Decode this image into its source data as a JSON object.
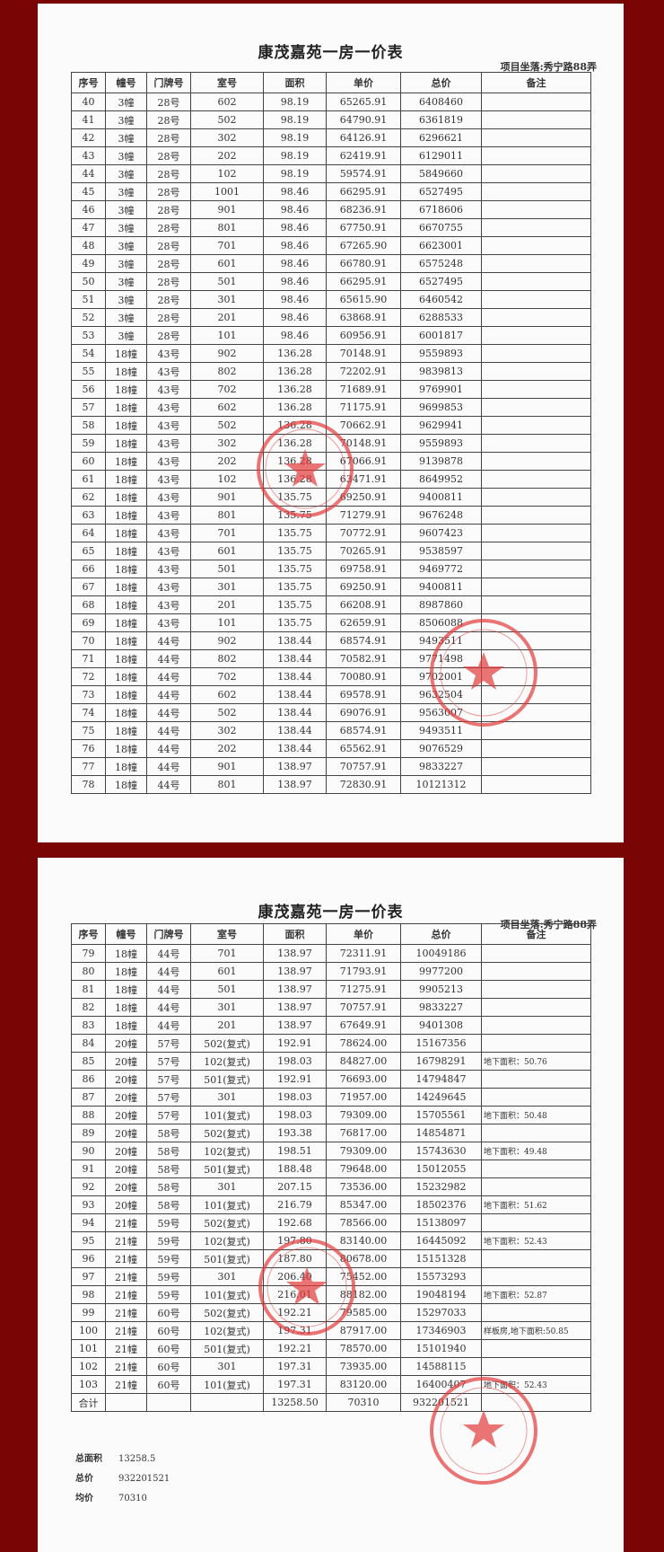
{
  "document_title": "康茂嘉苑一房一价表",
  "location": "项目坐落:秀宁路88弄",
  "columns": [
    "序号",
    "幢号",
    "门牌号",
    "室号",
    "面积",
    "单价",
    "总价",
    "备注"
  ],
  "stamp_color": "#e23a3a",
  "pages": [
    {
      "rows": [
        [
          "40",
          "3幢",
          "28号",
          "602",
          "98.19",
          "65265.91",
          "6408460",
          ""
        ],
        [
          "41",
          "3幢",
          "28号",
          "502",
          "98.19",
          "64790.91",
          "6361819",
          ""
        ],
        [
          "42",
          "3幢",
          "28号",
          "302",
          "98.19",
          "64126.91",
          "6296621",
          ""
        ],
        [
          "43",
          "3幢",
          "28号",
          "202",
          "98.19",
          "62419.91",
          "6129011",
          ""
        ],
        [
          "44",
          "3幢",
          "28号",
          "102",
          "98.19",
          "59574.91",
          "5849660",
          ""
        ],
        [
          "45",
          "3幢",
          "28号",
          "1001",
          "98.46",
          "66295.91",
          "6527495",
          ""
        ],
        [
          "46",
          "3幢",
          "28号",
          "901",
          "98.46",
          "68236.91",
          "6718606",
          ""
        ],
        [
          "47",
          "3幢",
          "28号",
          "801",
          "98.46",
          "67750.91",
          "6670755",
          ""
        ],
        [
          "48",
          "3幢",
          "28号",
          "701",
          "98.46",
          "67265.90",
          "6623001",
          ""
        ],
        [
          "49",
          "3幢",
          "28号",
          "601",
          "98.46",
          "66780.91",
          "6575248",
          ""
        ],
        [
          "50",
          "3幢",
          "28号",
          "501",
          "98.46",
          "66295.91",
          "6527495",
          ""
        ],
        [
          "51",
          "3幢",
          "28号",
          "301",
          "98.46",
          "65615.90",
          "6460542",
          ""
        ],
        [
          "52",
          "3幢",
          "28号",
          "201",
          "98.46",
          "63868.91",
          "6288533",
          ""
        ],
        [
          "53",
          "3幢",
          "28号",
          "101",
          "98.46",
          "60956.91",
          "6001817",
          ""
        ],
        [
          "54",
          "18幢",
          "43号",
          "902",
          "136.28",
          "70148.91",
          "9559893",
          ""
        ],
        [
          "55",
          "18幢",
          "43号",
          "802",
          "136.28",
          "72202.91",
          "9839813",
          ""
        ],
        [
          "56",
          "18幢",
          "43号",
          "702",
          "136.28",
          "71689.91",
          "9769901",
          ""
        ],
        [
          "57",
          "18幢",
          "43号",
          "602",
          "136.28",
          "71175.91",
          "9699853",
          ""
        ],
        [
          "58",
          "18幢",
          "43号",
          "502",
          "136.28",
          "70662.91",
          "9629941",
          ""
        ],
        [
          "59",
          "18幢",
          "43号",
          "302",
          "136.28",
          "70148.91",
          "9559893",
          ""
        ],
        [
          "60",
          "18幢",
          "43号",
          "202",
          "136.28",
          "67066.91",
          "9139878",
          ""
        ],
        [
          "61",
          "18幢",
          "43号",
          "102",
          "136.28",
          "63471.91",
          "8649952",
          ""
        ],
        [
          "62",
          "18幢",
          "43号",
          "901",
          "135.75",
          "69250.91",
          "9400811",
          ""
        ],
        [
          "63",
          "18幢",
          "43号",
          "801",
          "135.75",
          "71279.91",
          "9676248",
          ""
        ],
        [
          "64",
          "18幢",
          "43号",
          "701",
          "135.75",
          "70772.91",
          "9607423",
          ""
        ],
        [
          "65",
          "18幢",
          "43号",
          "601",
          "135.75",
          "70265.91",
          "9538597",
          ""
        ],
        [
          "66",
          "18幢",
          "43号",
          "501",
          "135.75",
          "69758.91",
          "9469772",
          ""
        ],
        [
          "67",
          "18幢",
          "43号",
          "301",
          "135.75",
          "69250.91",
          "9400811",
          ""
        ],
        [
          "68",
          "18幢",
          "43号",
          "201",
          "135.75",
          "66208.91",
          "8987860",
          ""
        ],
        [
          "69",
          "18幢",
          "43号",
          "101",
          "135.75",
          "62659.91",
          "8506088",
          ""
        ],
        [
          "70",
          "18幢",
          "44号",
          "902",
          "138.44",
          "68574.91",
          "9493511",
          ""
        ],
        [
          "71",
          "18幢",
          "44号",
          "802",
          "138.44",
          "70582.91",
          "9771498",
          ""
        ],
        [
          "72",
          "18幢",
          "44号",
          "702",
          "138.44",
          "70080.91",
          "9702001",
          ""
        ],
        [
          "73",
          "18幢",
          "44号",
          "602",
          "138.44",
          "69578.91",
          "9632504",
          ""
        ],
        [
          "74",
          "18幢",
          "44号",
          "502",
          "138.44",
          "69076.91",
          "9563007",
          ""
        ],
        [
          "75",
          "18幢",
          "44号",
          "302",
          "138.44",
          "68574.91",
          "9493511",
          ""
        ],
        [
          "76",
          "18幢",
          "44号",
          "202",
          "138.44",
          "65562.91",
          "9076529",
          ""
        ],
        [
          "77",
          "18幢",
          "44号",
          "901",
          "138.97",
          "70757.91",
          "9833227",
          ""
        ],
        [
          "78",
          "18幢",
          "44号",
          "801",
          "138.97",
          "72830.91",
          "10121312",
          ""
        ]
      ]
    },
    {
      "rows": [
        [
          "79",
          "18幢",
          "44号",
          "701",
          "138.97",
          "72311.91",
          "10049186",
          ""
        ],
        [
          "80",
          "18幢",
          "44号",
          "601",
          "138.97",
          "71793.91",
          "9977200",
          ""
        ],
        [
          "81",
          "18幢",
          "44号",
          "501",
          "138.97",
          "71275.91",
          "9905213",
          ""
        ],
        [
          "82",
          "18幢",
          "44号",
          "301",
          "138.97",
          "70757.91",
          "9833227",
          ""
        ],
        [
          "83",
          "18幢",
          "44号",
          "201",
          "138.97",
          "67649.91",
          "9401308",
          ""
        ],
        [
          "84",
          "20幢",
          "57号",
          "502(复式)",
          "192.91",
          "78624.00",
          "15167356",
          ""
        ],
        [
          "85",
          "20幢",
          "57号",
          "102(复式)",
          "198.03",
          "84827.00",
          "16798291",
          "地下面积：50.76"
        ],
        [
          "86",
          "20幢",
          "57号",
          "501(复式)",
          "192.91",
          "76693.00",
          "14794847",
          ""
        ],
        [
          "87",
          "20幢",
          "57号",
          "301",
          "198.03",
          "71957.00",
          "14249645",
          ""
        ],
        [
          "88",
          "20幢",
          "57号",
          "101(复式)",
          "198.03",
          "79309.00",
          "15705561",
          "地下面积：50.48"
        ],
        [
          "89",
          "20幢",
          "58号",
          "502(复式)",
          "193.38",
          "76817.00",
          "14854871",
          ""
        ],
        [
          "90",
          "20幢",
          "58号",
          "102(复式)",
          "198.51",
          "79309.00",
          "15743630",
          "地下面积：49.48"
        ],
        [
          "91",
          "20幢",
          "58号",
          "501(复式)",
          "188.48",
          "79648.00",
          "15012055",
          ""
        ],
        [
          "92",
          "20幢",
          "58号",
          "301",
          "207.15",
          "73536.00",
          "15232982",
          ""
        ],
        [
          "93",
          "20幢",
          "58号",
          "101(复式)",
          "216.79",
          "85347.00",
          "18502376",
          "地下面积：51.62"
        ],
        [
          "94",
          "21幢",
          "59号",
          "502(复式)",
          "192.68",
          "78566.00",
          "15138097",
          ""
        ],
        [
          "95",
          "21幢",
          "59号",
          "102(复式)",
          "197.80",
          "83140.00",
          "16445092",
          "地下面积：52.43"
        ],
        [
          "96",
          "21幢",
          "59号",
          "501(复式)",
          "187.80",
          "80678.00",
          "15151328",
          ""
        ],
        [
          "97",
          "21幢",
          "59号",
          "301",
          "206.40",
          "75452.00",
          "15573293",
          ""
        ],
        [
          "98",
          "21幢",
          "59号",
          "101(复式)",
          "216.01",
          "88182.00",
          "19048194",
          "地下面积：52.87"
        ],
        [
          "99",
          "21幢",
          "60号",
          "502(复式)",
          "192.21",
          "79585.00",
          "15297033",
          ""
        ],
        [
          "100",
          "21幢",
          "60号",
          "102(复式)",
          "197.31",
          "87917.00",
          "17346903",
          "样板房,地下面积:50.85"
        ],
        [
          "101",
          "21幢",
          "60号",
          "501(复式)",
          "192.21",
          "78570.00",
          "15101940",
          ""
        ],
        [
          "102",
          "21幢",
          "60号",
          "301",
          "197.31",
          "73935.00",
          "14588115",
          ""
        ],
        [
          "103",
          "21幢",
          "60号",
          "101(复式)",
          "197.31",
          "83120.00",
          "16400407",
          "地下面积：52.43"
        ]
      ],
      "total_row": [
        "合计",
        "",
        "",
        "",
        "13258.50",
        "70310",
        "932201521",
        ""
      ]
    }
  ],
  "summary": [
    {
      "label": "总面积",
      "value": "13258.5"
    },
    {
      "label": "总价",
      "value": "932201521"
    },
    {
      "label": "均价",
      "value": "70310"
    }
  ]
}
